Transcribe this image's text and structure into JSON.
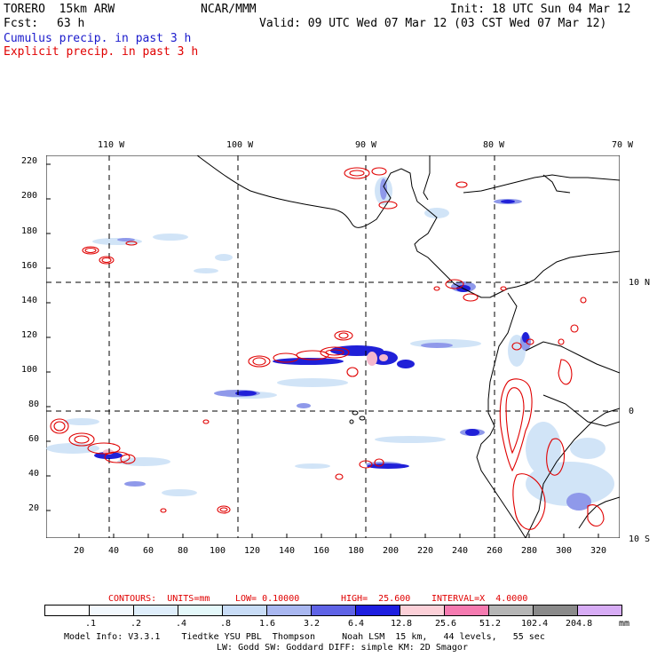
{
  "header": {
    "model_name": "TORERO  15km ARW",
    "org": "NCAR/MMM",
    "init": "Init: 18 UTC Sun 04 Mar 12",
    "fcst_label": "Fcst:",
    "fcst_value": "63 h",
    "valid": "Valid: 09 UTC Wed 07 Mar 12 (03 CST Wed 07 Mar 12)",
    "cumulus": "Cumulus precip. in past 3 h",
    "explicit": "Explicit precip. in past 3 h"
  },
  "map": {
    "lon_labels": [
      "110 W",
      "100 W",
      "90 W",
      "80 W",
      "70 W"
    ],
    "lat_labels": [
      "10 N",
      "0",
      "10 S"
    ],
    "y_ticks": [
      "220",
      "200",
      "180",
      "160",
      "140",
      "120",
      "100",
      "80",
      "60",
      "40",
      "20"
    ],
    "x_ticks": [
      "20",
      "40",
      "60",
      "80",
      "100",
      "120",
      "140",
      "160",
      "180",
      "200",
      "220",
      "240",
      "260",
      "280",
      "300",
      "320"
    ]
  },
  "contours": {
    "units_label": "CONTOURS:  UNITS=mm",
    "low": "LOW= 0.10000",
    "high": "HIGH=  25.600",
    "interval": "INTERVAL=X  4.0000"
  },
  "colorbar": {
    "labels": [
      ".1",
      ".2",
      ".4",
      ".8",
      "1.6",
      "3.2",
      "6.4",
      "12.8",
      "25.6",
      "51.2",
      "102.4",
      "204.8"
    ],
    "unit": "mm",
    "colors": [
      "#ffffff",
      "#f2f8fd",
      "#dfeefb",
      "#e4f8fa",
      "#c8dcf6",
      "#a9b7f0",
      "#5f63e6",
      "#1e1ee0",
      "#fcd0d8",
      "#f57ab0",
      "#b5b5b5",
      "#8a8a8a",
      "#d7acf5"
    ]
  },
  "footer": {
    "line1": "Model Info: V3.3.1    Tiedtke YSU PBL  Thompson     Noah LSM  15 km,   44 levels,   55 sec",
    "line2": "LW: Godd SW: Goddard DIFF: simple KM: 2D Smagor"
  }
}
